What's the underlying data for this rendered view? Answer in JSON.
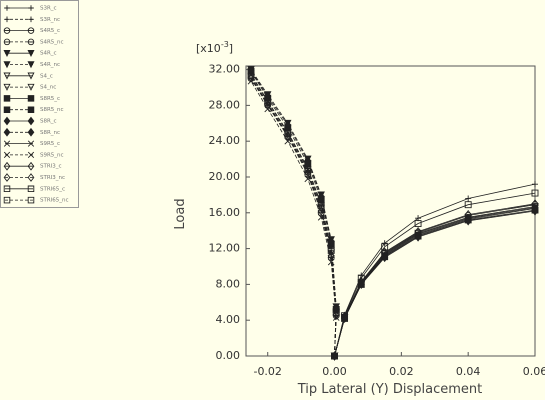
{
  "chart_data": {
    "type": "line",
    "xlabel": "Tip Lateral (Y) Displacement",
    "ylabel": "Load",
    "y_scale": {
      "base": "[x10",
      "exponent": "-3",
      "close": "]"
    },
    "xlim": [
      -0.0265,
      0.06
    ],
    "ylim": [
      0,
      32.4
    ],
    "xticks": [
      {
        "value": -0.02,
        "label": "-0.02"
      },
      {
        "value": 0,
        "label": "0.00"
      },
      {
        "value": 0.02,
        "label": "0.02"
      },
      {
        "value": 0.04,
        "label": "0.04"
      },
      {
        "value": 0.06,
        "label": "0.06"
      }
    ],
    "yticks": [
      {
        "value": 0,
        "label": "0.00"
      },
      {
        "value": 4,
        "label": "4.00"
      },
      {
        "value": 8,
        "label": "8.00"
      },
      {
        "value": 12,
        "label": "12.00"
      },
      {
        "value": 16,
        "label": "16.00"
      },
      {
        "value": 20,
        "label": "20.00"
      },
      {
        "value": 24,
        "label": "24.00"
      },
      {
        "value": 28,
        "label": "28.00"
      },
      {
        "value": 32,
        "label": "32.00"
      }
    ],
    "series": [
      {
        "name": "S3R_c",
        "color": "#222",
        "marker": "plus",
        "dashed": false,
        "x": [
          0,
          0.003,
          0.008,
          0.015,
          0.025,
          0.04,
          0.06
        ],
        "values": [
          0,
          4.6,
          9.0,
          12.6,
          15.4,
          17.6,
          19.2
        ]
      },
      {
        "name": "S3R_nc",
        "color": "#222",
        "marker": "plus",
        "dashed": true,
        "x": [
          0,
          0.0005,
          -0.001,
          -0.004,
          -0.008,
          -0.014,
          -0.02,
          -0.025
        ],
        "values": [
          0,
          5,
          12,
          17,
          21,
          25,
          28.5,
          31.5
        ]
      },
      {
        "name": "S4R5_c",
        "color": "#222",
        "marker": "circle",
        "dashed": false,
        "x": [
          0,
          0.003,
          0.008,
          0.015,
          0.025,
          0.04,
          0.06
        ],
        "values": [
          0,
          4.4,
          8.3,
          11.5,
          13.8,
          15.7,
          16.9
        ]
      },
      {
        "name": "S4R5_nc",
        "color": "#222",
        "marker": "circle",
        "dashed": true,
        "x": [
          0,
          0.0005,
          -0.001,
          -0.004,
          -0.008,
          -0.014,
          -0.02,
          -0.025
        ],
        "values": [
          0,
          4.5,
          11,
          16,
          20.3,
          24.5,
          28,
          31
        ]
      },
      {
        "name": "S4R_c",
        "color": "#222",
        "marker": "tri-filled",
        "dashed": false,
        "x": [
          0,
          0.003,
          0.008,
          0.015,
          0.025,
          0.04,
          0.06
        ],
        "values": [
          0,
          4.3,
          8.1,
          11.2,
          13.5,
          15.3,
          16.5
        ]
      },
      {
        "name": "S4R_nc",
        "color": "#222",
        "marker": "tri-filled",
        "dashed": true,
        "x": [
          0,
          0.0005,
          -0.001,
          -0.004,
          -0.008,
          -0.014,
          -0.02,
          -0.025
        ],
        "values": [
          0,
          5.5,
          13,
          18,
          22,
          26,
          29.2,
          32
        ]
      },
      {
        "name": "S4_c",
        "color": "#222",
        "marker": "tri",
        "dashed": false,
        "x": [
          0,
          0.003,
          0.008,
          0.015,
          0.025,
          0.04,
          0.06
        ],
        "values": [
          0,
          4.3,
          8.2,
          11.4,
          13.7,
          15.5,
          16.7
        ]
      },
      {
        "name": "S4_nc",
        "color": "#222",
        "marker": "tri",
        "dashed": true,
        "x": [
          0,
          0.0005,
          -0.001,
          -0.004,
          -0.008,
          -0.014,
          -0.02,
          -0.025
        ],
        "values": [
          0,
          4.8,
          11.5,
          16.5,
          20.6,
          24.7,
          28.2,
          31.2
        ]
      },
      {
        "name": "S8R5_c",
        "color": "#222",
        "marker": "square-filled",
        "dashed": false,
        "x": [
          0,
          0.003,
          0.008,
          0.015,
          0.025,
          0.04,
          0.06
        ],
        "values": [
          0,
          4.2,
          8.0,
          11.1,
          13.4,
          15.2,
          16.3
        ]
      },
      {
        "name": "S8R5_nc",
        "color": "#222",
        "marker": "square-filled",
        "dashed": true,
        "x": [
          0,
          0.0005,
          -0.001,
          -0.004,
          -0.008,
          -0.014,
          -0.02,
          -0.025
        ],
        "values": [
          0,
          5.2,
          12.5,
          17.5,
          21.5,
          25.5,
          28.8,
          31.8
        ]
      },
      {
        "name": "S8R_c",
        "color": "#222",
        "marker": "diamond-filled",
        "dashed": false,
        "x": [
          0,
          0.003,
          0.008,
          0.015,
          0.025,
          0.04,
          0.06
        ],
        "values": [
          0,
          4.2,
          8.0,
          11.0,
          13.3,
          15.1,
          16.2
        ]
      },
      {
        "name": "S8R_nc",
        "color": "#222",
        "marker": "diamond-filled",
        "dashed": true,
        "x": [
          0,
          0.0005,
          -0.001,
          -0.004,
          -0.008,
          -0.014,
          -0.02,
          -0.025
        ],
        "values": [
          0,
          5.3,
          12.8,
          17.8,
          21.8,
          25.8,
          29,
          31.9
        ]
      },
      {
        "name": "S9R5_c",
        "color": "#222",
        "marker": "cross",
        "dashed": false,
        "x": [
          0,
          0.003,
          0.008,
          0.015,
          0.025,
          0.04,
          0.06
        ],
        "values": [
          0,
          4.3,
          8.1,
          11.3,
          13.6,
          15.4,
          16.6
        ]
      },
      {
        "name": "S9R5_nc",
        "color": "#222",
        "marker": "cross",
        "dashed": true,
        "x": [
          0,
          0.0005,
          -0.001,
          -0.004,
          -0.008,
          -0.014,
          -0.02,
          -0.025
        ],
        "values": [
          0,
          4.3,
          10.5,
          15.5,
          19.8,
          24,
          27.6,
          30.7
        ]
      },
      {
        "name": "STRI3_c",
        "color": "#222",
        "marker": "diamond",
        "dashed": false,
        "x": [
          0,
          0.003,
          0.008,
          0.015,
          0.025,
          0.04,
          0.06
        ],
        "values": [
          0,
          4.4,
          8.3,
          11.6,
          13.9,
          15.8,
          17.0
        ]
      },
      {
        "name": "STRI3_nc",
        "color": "#222",
        "marker": "diamond",
        "dashed": true,
        "x": [
          0,
          0.0005,
          -0.001,
          -0.004,
          -0.008,
          -0.014,
          -0.02,
          -0.025
        ],
        "values": [
          0,
          4.6,
          11.2,
          16.2,
          20.5,
          24.6,
          28.1,
          31.1
        ]
      },
      {
        "name": "STRI65_c",
        "color": "#222",
        "marker": "square",
        "dashed": false,
        "x": [
          0,
          0.003,
          0.008,
          0.015,
          0.025,
          0.04,
          0.06
        ],
        "values": [
          0,
          4.5,
          8.7,
          12.2,
          14.8,
          16.9,
          18.2
        ]
      },
      {
        "name": "STRI65_nc",
        "color": "#222",
        "marker": "square",
        "dashed": true,
        "x": [
          0,
          0.0005,
          -0.001,
          -0.004,
          -0.008,
          -0.014,
          -0.02,
          -0.025
        ],
        "values": [
          0,
          4.9,
          11.8,
          16.8,
          20.8,
          24.9,
          28.4,
          31.4
        ]
      }
    ]
  }
}
